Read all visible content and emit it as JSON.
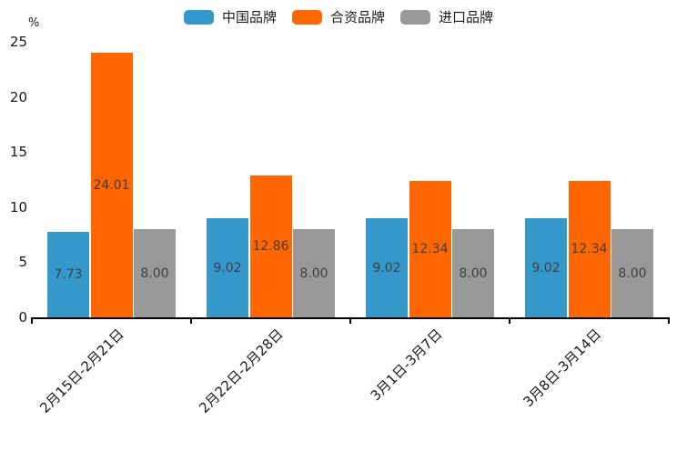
{
  "chart_data": {
    "type": "bar",
    "ylabel": "%",
    "categories": [
      "2月15日-2月21日",
      "2月22日-2月28日",
      "3月1日-3月7日",
      "3月8日-3月14日"
    ],
    "series": [
      {
        "name": "中国品牌",
        "color": "#3498cb",
        "values": [
          7.73,
          9.02,
          9.02,
          9.02
        ]
      },
      {
        "name": "合资品牌",
        "color": "#ff6600",
        "values": [
          24.01,
          12.86,
          12.34,
          12.34
        ]
      },
      {
        "name": "进口品牌",
        "color": "#999999",
        "values": [
          8.0,
          8.0,
          8.0,
          8.0
        ]
      }
    ],
    "yticks": [
      0,
      5,
      10,
      15,
      20,
      25
    ],
    "ylim": [
      0,
      25
    ],
    "grid": false,
    "legend_position": "top-center",
    "value_labels": true,
    "value_label_format": "2-decimals"
  },
  "colors": {
    "background": "#ffffff",
    "axis": "#000000",
    "tick_text": "#1a1a1a",
    "value_label_text": "#3f3f3f"
  }
}
